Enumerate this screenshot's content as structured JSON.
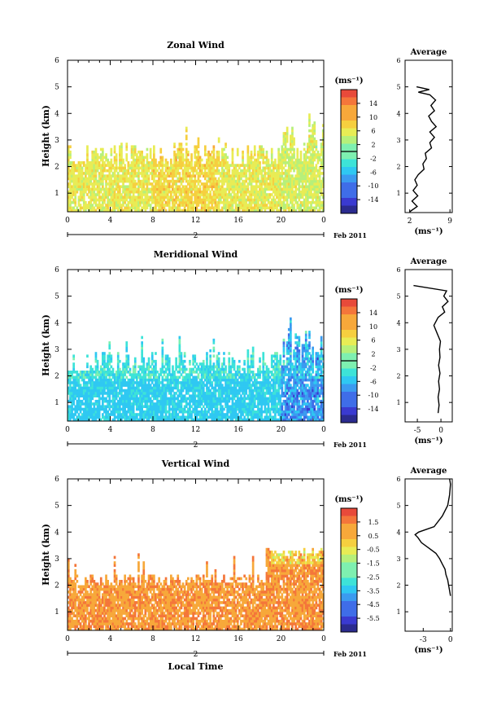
{
  "chart_data": [
    {
      "type": "heatmap",
      "title": "Zonal Wind",
      "ylabel": "Height (km)",
      "xlabel": "",
      "x_ticks": [
        "0",
        "4",
        "8",
        "12",
        "16",
        "20",
        "0"
      ],
      "y_ticks": [
        "1",
        "2",
        "3",
        "4",
        "5",
        "6"
      ],
      "xlim": [
        0,
        24
      ],
      "ylim": [
        0.3,
        6
      ],
      "date_label": "2",
      "month_label": "Feb 2011",
      "colorbar": {
        "unit": "(ms⁻¹)",
        "tick_labels": [
          "14",
          "10",
          "6",
          "2",
          "-2",
          "-6",
          "-10",
          "-14"
        ],
        "range": [
          -16,
          16
        ],
        "contour_level": 0
      },
      "profile": {
        "title": "Average",
        "xlabel": "(ms⁻¹)",
        "x_ticks": [
          "2",
          "9"
        ],
        "xlim": [
          1.2,
          9.4
        ],
        "heights": [
          0.3,
          0.5,
          0.7,
          0.9,
          1.1,
          1.3,
          1.5,
          1.7,
          1.9,
          2.1,
          2.3,
          2.5,
          2.7,
          2.9,
          3.1,
          3.3,
          3.5,
          3.7,
          3.9,
          4.1,
          4.3,
          4.5,
          4.7,
          4.8,
          4.9,
          5.0
        ],
        "values": [
          2.0,
          3.3,
          2.4,
          3.4,
          2.6,
          3.3,
          2.9,
          3.5,
          4.5,
          4.3,
          4.9,
          4.7,
          5.8,
          5.5,
          6.3,
          5.5,
          6.6,
          5.8,
          5.3,
          6.3,
          5.7,
          6.5,
          5.5,
          3.5,
          5.4,
          3.2
        ]
      }
    },
    {
      "type": "heatmap",
      "title": "Meridional Wind",
      "ylabel": "Height (km)",
      "xlabel": "",
      "x_ticks": [
        "0",
        "4",
        "8",
        "12",
        "16",
        "20",
        "0"
      ],
      "y_ticks": [
        "1",
        "2",
        "3",
        "4",
        "5",
        "6"
      ],
      "xlim": [
        0,
        24
      ],
      "ylim": [
        0.3,
        6
      ],
      "date_label": "2",
      "month_label": "Feb 2011",
      "colorbar": {
        "unit": "(ms⁻¹)",
        "tick_labels": [
          "14",
          "10",
          "6",
          "2",
          "-2",
          "-6",
          "-10",
          "-14"
        ],
        "range": [
          -16,
          16
        ],
        "contour_level": 0
      },
      "profile": {
        "title": "Average",
        "xlabel": "(ms⁻¹)",
        "x_ticks": [
          "-5",
          "0"
        ],
        "xlim": [
          -7.6,
          2.4
        ],
        "heights": [
          0.6,
          0.9,
          1.2,
          1.5,
          1.8,
          2.1,
          2.4,
          2.7,
          3.0,
          3.3,
          3.6,
          3.9,
          4.2,
          4.4,
          4.6,
          4.8,
          5.0,
          5.2,
          5.4
        ],
        "values": [
          -0.6,
          -0.4,
          -0.6,
          -0.3,
          -0.5,
          -0.2,
          -0.5,
          -0.2,
          -0.3,
          -0.1,
          -0.8,
          -1.5,
          -0.6,
          0.8,
          0.3,
          1.5,
          0.6,
          1.2,
          -5.8
        ]
      }
    },
    {
      "type": "heatmap",
      "title": "Vertical Wind",
      "ylabel": "Height (km)",
      "xlabel": "Local Time",
      "x_ticks": [
        "0",
        "4",
        "8",
        "12",
        "16",
        "20",
        "0"
      ],
      "y_ticks": [
        "1",
        "2",
        "3",
        "4",
        "5",
        "6"
      ],
      "xlim": [
        0,
        24
      ],
      "ylim": [
        0.3,
        6
      ],
      "date_label": "2",
      "month_label": "Feb 2011",
      "colorbar": {
        "unit": "(ms⁻¹)",
        "tick_labels": [
          "1.5",
          "0.5",
          "-0.5",
          "-1.5",
          "-2.5",
          "-3.5",
          "-4.5",
          "-5.5"
        ],
        "range": [
          -6.0,
          2.0
        ]
      },
      "profile": {
        "title": "Average",
        "xlabel": "(ms⁻¹)",
        "x_ticks": [
          "-3",
          "0"
        ],
        "xlim": [
          -5.0,
          0.2
        ],
        "heights": [
          1.6,
          1.8,
          2.0,
          2.2,
          2.4,
          2.6,
          2.8,
          3.0,
          3.2,
          3.4,
          3.6,
          3.8,
          3.9,
          4.0,
          4.2,
          4.6,
          5.0,
          5.4,
          5.8,
          6.0
        ],
        "values": [
          0.0,
          -0.1,
          -0.2,
          -0.3,
          -0.5,
          -0.6,
          -0.9,
          -1.2,
          -1.6,
          -2.4,
          -3.2,
          -3.6,
          -3.9,
          -3.5,
          -1.8,
          -0.9,
          -0.3,
          -0.1,
          0.0,
          -0.1
        ]
      }
    }
  ]
}
